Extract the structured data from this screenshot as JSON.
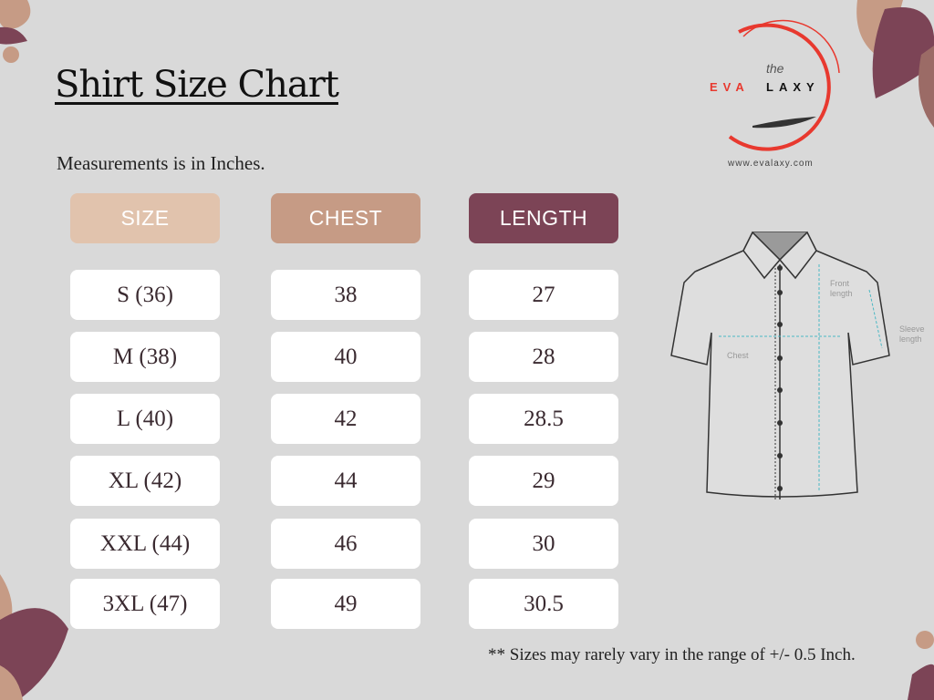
{
  "title": "Shirt Size Chart",
  "subtitle": "Measurements is in Inches.",
  "headers": {
    "size": "SIZE",
    "chest": "CHEST",
    "length": "LENGTH"
  },
  "header_colors": {
    "size": "#e1c3ad",
    "chest": "#c69b85",
    "length": "#7c4456"
  },
  "rows": [
    {
      "size": "S (36)",
      "chest": "38",
      "length": "27"
    },
    {
      "size": "M (38)",
      "chest": "40",
      "length": "28"
    },
    {
      "size": "L (40)",
      "chest": "42",
      "length": "28.5"
    },
    {
      "size": "XL (42)",
      "chest": "44",
      "length": "29"
    },
    {
      "size": "XXL (44)",
      "chest": "46",
      "length": "30"
    },
    {
      "size": "3XL (47)",
      "chest": "49",
      "length": "30.5"
    }
  ],
  "note": "** Sizes may rarely vary in the range of +/- 0.5 Inch.",
  "logo": {
    "the": "the",
    "brand_red": "EVA",
    "brand_black": "LAXY",
    "url": "www.evalaxy.com"
  },
  "diagram": {
    "front_length": [
      "Front",
      "length"
    ],
    "sleeve_length": [
      "Sleeve",
      "length"
    ],
    "chest": "Chest"
  }
}
